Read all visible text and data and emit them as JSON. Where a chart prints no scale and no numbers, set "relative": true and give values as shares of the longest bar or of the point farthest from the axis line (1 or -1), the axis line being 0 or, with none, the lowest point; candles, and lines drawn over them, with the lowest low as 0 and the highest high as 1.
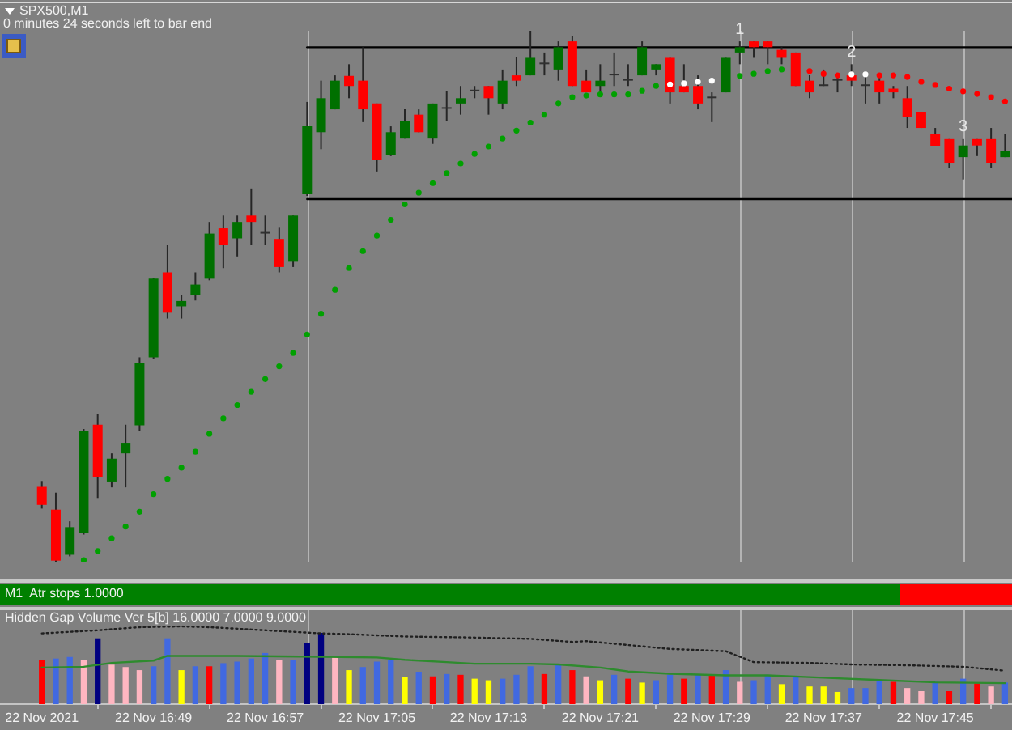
{
  "chart_data": [
    {
      "type": "candlestick",
      "title": "SPX500,M1",
      "subtitle": "0 minutes 24 seconds left to bar end",
      "relative": true,
      "x": [
        "2021-11-22T16:41",
        "2021-11-22T16:42",
        "2021-11-22T16:43",
        "2021-11-22T16:44",
        "2021-11-22T16:45",
        "2021-11-22T16:46",
        "2021-11-22T16:47",
        "2021-11-22T16:48",
        "2021-11-22T16:49",
        "2021-11-22T16:50",
        "2021-11-22T16:51",
        "2021-11-22T16:52",
        "2021-11-22T16:53",
        "2021-11-22T16:54",
        "2021-11-22T16:55",
        "2021-11-22T16:56",
        "2021-11-22T16:57",
        "2021-11-22T16:58",
        "2021-11-22T16:59",
        "2021-11-22T17:00",
        "2021-11-22T17:01",
        "2021-11-22T17:02",
        "2021-11-22T17:03",
        "2021-11-22T17:04",
        "2021-11-22T17:05",
        "2021-11-22T17:06",
        "2021-11-22T17:07",
        "2021-11-22T17:08",
        "2021-11-22T17:09",
        "2021-11-22T17:10",
        "2021-11-22T17:11",
        "2021-11-22T17:12",
        "2021-11-22T17:13",
        "2021-11-22T17:14",
        "2021-11-22T17:15",
        "2021-11-22T17:16",
        "2021-11-22T17:17",
        "2021-11-22T17:18",
        "2021-11-22T17:19",
        "2021-11-22T17:20",
        "2021-11-22T17:21",
        "2021-11-22T17:22",
        "2021-11-22T17:23",
        "2021-11-22T17:24",
        "2021-11-22T17:25",
        "2021-11-22T17:26",
        "2021-11-22T17:27",
        "2021-11-22T17:28",
        "2021-11-22T17:29",
        "2021-11-22T17:30",
        "2021-11-22T17:31",
        "2021-11-22T17:32",
        "2021-11-22T17:33",
        "2021-11-22T17:34",
        "2021-11-22T17:35",
        "2021-11-22T17:36",
        "2021-11-22T17:37",
        "2021-11-22T17:38",
        "2021-11-22T17:39",
        "2021-11-22T17:40",
        "2021-11-22T17:41",
        "2021-11-22T17:42",
        "2021-11-22T17:43",
        "2021-11-22T17:44",
        "2021-11-22T17:45",
        "2021-11-22T17:46",
        "2021-11-22T17:47",
        "2021-11-22T17:48",
        "2021-11-22T17:49",
        "2021-11-22T17:50"
      ],
      "ohlc": [
        [
          0.141,
          0.152,
          0.1,
          0.107
        ],
        [
          0.098,
          0.13,
          0,
          0.002
        ],
        [
          0.013,
          0.076,
          0.01,
          0.065
        ],
        [
          0.054,
          0.25,
          0.051,
          0.247
        ],
        [
          0.258,
          0.278,
          0.12,
          0.16
        ],
        [
          0.151,
          0.204,
          0.14,
          0.194
        ],
        [
          0.204,
          0.258,
          0.14,
          0.224
        ],
        [
          0.257,
          0.385,
          0.246,
          0.375
        ],
        [
          0.385,
          0.535,
          0.382,
          0.533
        ],
        [
          0.545,
          0.596,
          0.458,
          0.469
        ],
        [
          0.481,
          0.502,
          0.458,
          0.491
        ],
        [
          0.502,
          0.545,
          0.492,
          0.522
        ],
        [
          0.533,
          0.64,
          0.53,
          0.618
        ],
        [
          0.628,
          0.652,
          0.553,
          0.596
        ],
        [
          0.609,
          0.652,
          0.575,
          0.64
        ],
        [
          0.652,
          0.703,
          0.596,
          0.64
        ],
        [
          0.618,
          0.652,
          0.596,
          0.618
        ],
        [
          0.608,
          0.629,
          0.545,
          0.555
        ],
        [
          0.565,
          0.652,
          0.555,
          0.652
        ],
        [
          0.692,
          0.866,
          0.689,
          0.82
        ],
        [
          0.809,
          0.906,
          0.777,
          0.873
        ],
        [
          0.852,
          0.916,
          0.852,
          0.906
        ],
        [
          0.915,
          0.937,
          0.873,
          0.896
        ],
        [
          0.906,
          0.969,
          0.828,
          0.852
        ],
        [
          0.863,
          0.863,
          0.735,
          0.756
        ],
        [
          0.766,
          0.82,
          0.764,
          0.809
        ],
        [
          0.797,
          0.852,
          0.797,
          0.83
        ],
        [
          0.842,
          0.852,
          0.809,
          0.809
        ],
        [
          0.797,
          0.863,
          0.787,
          0.863
        ],
        [
          0.853,
          0.886,
          0.83,
          0.853
        ],
        [
          0.863,
          0.896,
          0.842,
          0.873
        ],
        [
          0.886,
          0.896,
          0.873,
          0.886
        ],
        [
          0.896,
          0.896,
          0.842,
          0.873
        ],
        [
          0.863,
          0.927,
          0.852,
          0.906
        ],
        [
          0.916,
          0.95,
          0.896,
          0.906
        ],
        [
          0.916,
          1,
          0.916,
          0.949
        ],
        [
          0.937,
          0.959,
          0.916,
          0.937
        ],
        [
          0.927,
          0.98,
          0.906,
          0.969
        ],
        [
          0.98,
          0.99,
          0.896,
          0.896
        ],
        [
          0.906,
          0.927,
          0.884,
          0.884
        ],
        [
          0.896,
          0.937,
          0.884,
          0.906
        ],
        [
          0.916,
          0.959,
          0.896,
          0.916
        ],
        [
          0.906,
          0.937,
          0.896,
          0.906
        ],
        [
          0.916,
          0.98,
          0.916,
          0.969
        ],
        [
          0.927,
          0.937,
          0.916,
          0.937
        ],
        [
          0.949,
          0.949,
          0.863,
          0.884
        ],
        [
          0.896,
          0.937,
          0.884,
          0.884
        ],
        [
          0.896,
          0.916,
          0.852,
          0.863
        ],
        [
          0.873,
          0.884,
          0.828,
          0.873
        ],
        [
          0.884,
          0.949,
          0.884,
          0.949
        ],
        [
          0.959,
          0.98,
          0.937,
          0.969
        ],
        [
          0.98,
          0.98,
          0.949,
          0.969
        ],
        [
          0.98,
          0.98,
          0.937,
          0.969
        ],
        [
          0.964,
          0.969,
          0.937,
          0.949
        ],
        [
          0.959,
          0.959,
          0.896,
          0.896
        ],
        [
          0.906,
          0.916,
          0.873,
          0.884
        ],
        [
          0.896,
          0.927,
          0.896,
          0.896
        ],
        [
          0.906,
          0.916,
          0.884,
          0.906
        ],
        [
          0.916,
          0.937,
          0.896,
          0.906
        ],
        [
          0.896,
          0.916,
          0.863,
          0.896
        ],
        [
          0.906,
          0.916,
          0.863,
          0.884
        ],
        [
          0.891,
          0.896,
          0.873,
          0.884
        ],
        [
          0.873,
          0.896,
          0.817,
          0.837
        ],
        [
          0.847,
          0.847,
          0.817,
          0.817
        ],
        [
          0.806,
          0.817,
          0.782,
          0.782
        ],
        [
          0.796,
          0.796,
          0.741,
          0.751
        ],
        [
          0.762,
          0.796,
          0.72,
          0.784
        ],
        [
          0.796,
          0.796,
          0.764,
          0.784
        ],
        [
          0.796,
          0.817,
          0.741,
          0.751
        ],
        [
          0.762,
          0.806,
          0.762,
          0.774
        ]
      ],
      "colors": [
        "#ff0000",
        "#ff0000",
        "#007000",
        "#007000",
        "#ff0000",
        "#007000",
        "#007000",
        "#007000",
        "#007000",
        "#ff0000",
        "#007000",
        "#007000",
        "#007000",
        "#ff0000",
        "#007000",
        "#ff0000",
        "#303030",
        "#ff0000",
        "#007000",
        "#007000",
        "#007000",
        "#007000",
        "#ff0000",
        "#ff0000",
        "#ff0000",
        "#007000",
        "#007000",
        "#ff0000",
        "#007000",
        "#303030",
        "#007000",
        "#303030",
        "#ff0000",
        "#007000",
        "#ff0000",
        "#007000",
        "#303030",
        "#007000",
        "#ff0000",
        "#ff0000",
        "#007000",
        "#303030",
        "#303030",
        "#007000",
        "#007000",
        "#ff0000",
        "#ff0000",
        "#ff0000",
        "#303030",
        "#007000",
        "#007000",
        "#ff0000",
        "#ff0000",
        "#ff0000",
        "#ff0000",
        "#ff0000",
        "#303030",
        "#303030",
        "#ff0000",
        "#303030",
        "#ff0000",
        "#ff0000",
        "#ff0000",
        "#ff0000",
        "#ff0000",
        "#ff0000",
        "#007000",
        "#ff0000",
        "#ff0000",
        "#007000"
      ],
      "series": [
        {
          "type": "scatter",
          "color": "#00a000",
          "marker": "circle",
          "x": [
            "2021-11-22T16:44",
            "2021-11-22T16:45",
            "2021-11-22T16:46",
            "2021-11-22T16:47",
            "2021-11-22T16:48",
            "2021-11-22T16:49",
            "2021-11-22T16:50",
            "2021-11-22T16:51",
            "2021-11-22T16:52",
            "2021-11-22T16:53",
            "2021-11-22T16:54",
            "2021-11-22T16:55",
            "2021-11-22T16:56",
            "2021-11-22T16:57",
            "2021-11-22T16:58",
            "2021-11-22T16:59",
            "2021-11-22T17:00",
            "2021-11-22T17:01",
            "2021-11-22T17:02",
            "2021-11-22T17:03",
            "2021-11-22T17:04",
            "2021-11-22T17:05",
            "2021-11-22T17:06",
            "2021-11-22T17:07",
            "2021-11-22T17:08",
            "2021-11-22T17:09",
            "2021-11-22T17:10",
            "2021-11-22T17:11",
            "2021-11-22T17:12",
            "2021-11-22T17:13",
            "2021-11-22T17:14",
            "2021-11-22T17:15",
            "2021-11-22T17:16",
            "2021-11-22T17:17",
            "2021-11-22T17:18",
            "2021-11-22T17:19",
            "2021-11-22T17:20",
            "2021-11-22T17:21",
            "2021-11-22T17:22",
            "2021-11-22T17:23",
            "2021-11-22T17:24",
            "2021-11-22T17:25",
            "2021-11-22T17:31",
            "2021-11-22T17:32",
            "2021-11-22T17:33",
            "2021-11-22T17:34"
          ],
          "values": [
            0.003,
            0.02,
            0.044,
            0.066,
            0.094,
            0.127,
            0.156,
            0.177,
            0.207,
            0.241,
            0.27,
            0.295,
            0.32,
            0.344,
            0.368,
            0.393,
            0.428,
            0.467,
            0.512,
            0.553,
            0.585,
            0.614,
            0.644,
            0.673,
            0.695,
            0.713,
            0.732,
            0.75,
            0.768,
            0.782,
            0.797,
            0.812,
            0.827,
            0.842,
            0.863,
            0.875,
            0.878,
            0.88,
            0.88,
            0.88,
            0.887,
            0.896,
            0.915,
            0.919,
            0.924,
            0.927
          ]
        },
        {
          "type": "scatter",
          "color": "#ffffff",
          "marker": "circle",
          "x": [
            "2021-11-22T17:26",
            "2021-11-22T17:27",
            "2021-11-22T17:28",
            "2021-11-22T17:29",
            "2021-11-22T17:39",
            "2021-11-22T17:40"
          ],
          "values": [
            0.899,
            0.901,
            0.904,
            0.906,
            0.918,
            0.918
          ]
        },
        {
          "type": "scatter",
          "color": "#ff0000",
          "marker": "circle",
          "x": [
            "2021-11-22T17:36",
            "2021-11-22T17:37",
            "2021-11-22T17:38",
            "2021-11-22T17:41",
            "2021-11-22T17:42",
            "2021-11-22T17:43",
            "2021-11-22T17:44",
            "2021-11-22T17:45",
            "2021-11-22T17:46",
            "2021-11-22T17:47",
            "2021-11-22T17:48",
            "2021-11-22T17:49",
            "2021-11-22T17:50"
          ],
          "values": [
            0.924,
            0.919,
            0.916,
            0.916,
            0.916,
            0.913,
            0.904,
            0.898,
            0.891,
            0.886,
            0.881,
            0.875,
            0.867
          ]
        },
        {
          "type": "line",
          "color": "#000000",
          "x": [
            "2021-11-22T17:00",
            "2021-11-22T17:50:30"
          ],
          "values": [
            0.969,
            0.969
          ]
        },
        {
          "type": "line",
          "color": "#000000",
          "x": [
            "2021-11-22T17:00",
            "2021-11-22T17:50:30"
          ],
          "values": [
            0.683,
            0.683
          ]
        }
      ],
      "xlim": [
        "2021-11-22T16:38",
        "2021-11-22T17:50:30"
      ],
      "tick_labels": false,
      "ref_lines": [
        {
          "axis": "x",
          "value": "2021-11-22T17:00",
          "color": "#b4b4b4"
        },
        {
          "axis": "x",
          "value": "2021-11-22T17:31",
          "color": "#b4b4b4"
        },
        {
          "axis": "x",
          "value": "2021-11-22T17:39",
          "color": "#b4b4b4"
        },
        {
          "axis": "x",
          "value": "2021-11-22T17:47",
          "color": "#b4b4b4"
        }
      ],
      "annotations": [
        {
          "text": "1",
          "x": "2021-11-22T17:31",
          "y": 0.98
        },
        {
          "text": "2",
          "x": "2021-11-22T17:39",
          "y": 0.937
        },
        {
          "text": "3",
          "x": "2021-11-22T17:47",
          "y": 0.796
        }
      ]
    },
    {
      "type": "other",
      "title": "M1  Atr stops 1.0000"
    },
    {
      "type": "bar",
      "title": "Hidden Gap Volume Ver 5[b] 16.0000 7.0000 9.0000",
      "relative": true,
      "x": [
        "2021-11-22T16:41",
        "2021-11-22T16:42",
        "2021-11-22T16:43",
        "2021-11-22T16:44",
        "2021-11-22T16:45",
        "2021-11-22T16:46",
        "2021-11-22T16:47",
        "2021-11-22T16:48",
        "2021-11-22T16:49",
        "2021-11-22T16:50",
        "2021-11-22T16:51",
        "2021-11-22T16:52",
        "2021-11-22T16:53",
        "2021-11-22T16:54",
        "2021-11-22T16:55",
        "2021-11-22T16:56",
        "2021-11-22T16:57",
        "2021-11-22T16:58",
        "2021-11-22T16:59",
        "2021-11-22T17:00",
        "2021-11-22T17:01",
        "2021-11-22T17:02",
        "2021-11-22T17:03",
        "2021-11-22T17:04",
        "2021-11-22T17:05",
        "2021-11-22T17:06",
        "2021-11-22T17:07",
        "2021-11-22T17:08",
        "2021-11-22T17:09",
        "2021-11-22T17:10",
        "2021-11-22T17:11",
        "2021-11-22T17:12",
        "2021-11-22T17:13",
        "2021-11-22T17:14",
        "2021-11-22T17:15",
        "2021-11-22T17:16",
        "2021-11-22T17:17",
        "2021-11-22T17:18",
        "2021-11-22T17:19",
        "2021-11-22T17:20",
        "2021-11-22T17:21",
        "2021-11-22T17:22",
        "2021-11-22T17:23",
        "2021-11-22T17:24",
        "2021-11-22T17:25",
        "2021-11-22T17:26",
        "2021-11-22T17:27",
        "2021-11-22T17:28",
        "2021-11-22T17:29",
        "2021-11-22T17:30",
        "2021-11-22T17:31",
        "2021-11-22T17:32",
        "2021-11-22T17:33",
        "2021-11-22T17:34",
        "2021-11-22T17:35",
        "2021-11-22T17:36",
        "2021-11-22T17:37",
        "2021-11-22T17:38",
        "2021-11-22T17:39",
        "2021-11-22T17:40",
        "2021-11-22T17:41",
        "2021-11-22T17:42",
        "2021-11-22T17:43",
        "2021-11-22T17:44",
        "2021-11-22T17:45",
        "2021-11-22T17:46",
        "2021-11-22T17:47",
        "2021-11-22T17:48",
        "2021-11-22T17:49",
        "2021-11-22T17:50"
      ],
      "series": [
        {
          "type": "bar",
          "values": [
            0.56,
            0.58,
            0.6,
            0.56,
            0.84,
            0.5,
            0.47,
            0.43,
            0.48,
            0.84,
            0.43,
            0.48,
            0.48,
            0.52,
            0.54,
            0.58,
            0.65,
            0.56,
            0.56,
            0.78,
            0.91,
            0.6,
            0.43,
            0.47,
            0.54,
            0.56,
            0.34,
            0.41,
            0.35,
            0.38,
            0.37,
            0.32,
            0.3,
            0.32,
            0.37,
            0.48,
            0.38,
            0.5,
            0.43,
            0.35,
            0.3,
            0.37,
            0.32,
            0.27,
            0.3,
            0.37,
            0.32,
            0.37,
            0.37,
            0.43,
            0.28,
            0.3,
            0.37,
            0.25,
            0.34,
            0.22,
            0.22,
            0.15,
            0.2,
            0.2,
            0.29,
            0.28,
            0.2,
            0.16,
            0.28,
            0.16,
            0.32,
            0.26,
            0.22,
            0.27
          ],
          "colors": [
            "#ff0000",
            "#4169e1",
            "#4169e1",
            "#ffb6c1",
            "#000080",
            "#ffb6c1",
            "#ffb6c1",
            "#ffb6c1",
            "#4169e1",
            "#4169e1",
            "#ffff00",
            "#4169e1",
            "#ff0000",
            "#4169e1",
            "#4169e1",
            "#4169e1",
            "#4169e1",
            "#ffb6c1",
            "#4169e1",
            "#000080",
            "#000080",
            "#ffb6c1",
            "#ffff00",
            "#4169e1",
            "#4169e1",
            "#4169e1",
            "#ffff00",
            "#4169e1",
            "#ff0000",
            "#4169e1",
            "#ff0000",
            "#ffff00",
            "#ffff00",
            "#4169e1",
            "#4169e1",
            "#4169e1",
            "#ff0000",
            "#4169e1",
            "#ff0000",
            "#ffb6c1",
            "#ffff00",
            "#4169e1",
            "#ff0000",
            "#ffff00",
            "#4169e1",
            "#4169e1",
            "#ff0000",
            "#4169e1",
            "#ff0000",
            "#4169e1",
            "#ffb6c1",
            "#4169e1",
            "#4169e1",
            "#ffff00",
            "#4169e1",
            "#ffff00",
            "#ffff00",
            "#ffff00",
            "#4169e1",
            "#4169e1",
            "#4169e1",
            "#ff0000",
            "#ffb6c1",
            "#ffb6c1",
            "#4169e1",
            "#ff0000",
            "#4169e1",
            "#ff0000",
            "#ffb6c1",
            "#4169e1"
          ]
        },
        {
          "type": "line",
          "color": "#2e8b2e",
          "x": [
            "2021-11-22T16:41",
            "2021-11-22T16:44",
            "2021-11-22T16:46",
            "2021-11-22T16:49",
            "2021-11-22T16:50",
            "2021-11-22T16:55",
            "2021-11-22T17:01",
            "2021-11-22T17:05",
            "2021-11-22T17:07",
            "2021-11-22T17:10",
            "2021-11-22T17:12",
            "2021-11-22T17:16",
            "2021-11-22T17:18",
            "2021-11-22T17:21",
            "2021-11-22T17:23",
            "2021-11-22T17:26",
            "2021-11-22T17:30",
            "2021-11-22T17:33",
            "2021-11-22T17:37",
            "2021-11-22T17:41",
            "2021-11-22T17:45",
            "2021-11-22T17:50"
          ],
          "values": [
            0.47,
            0.48,
            0.53,
            0.56,
            0.62,
            0.62,
            0.61,
            0.6,
            0.57,
            0.54,
            0.52,
            0.52,
            0.51,
            0.47,
            0.42,
            0.39,
            0.37,
            0.37,
            0.34,
            0.31,
            0.28,
            0.27
          ]
        },
        {
          "type": "line",
          "color": "#202020",
          "line_style": "dotted",
          "x": [
            "2021-11-22T16:41",
            "2021-11-22T16:43",
            "2021-11-22T16:45",
            "2021-11-22T16:48",
            "2021-11-22T16:51",
            "2021-11-22T16:53",
            "2021-11-22T16:56",
            "2021-11-22T16:58",
            "2021-11-22T17:01",
            "2021-11-22T17:03",
            "2021-11-22T17:07",
            "2021-11-22T17:11",
            "2021-11-22T17:16",
            "2021-11-22T17:19",
            "2021-11-22T17:20",
            "2021-11-22T17:23",
            "2021-11-22T17:26",
            "2021-11-22T17:30",
            "2021-11-22T17:32",
            "2021-11-22T17:36",
            "2021-11-22T17:39",
            "2021-11-22T17:43",
            "2021-11-22T17:47",
            "2021-11-22T17:50"
          ],
          "values": [
            0.91,
            0.93,
            0.95,
            0.99,
            1,
            0.99,
            0.96,
            0.94,
            0.91,
            0.9,
            0.87,
            0.86,
            0.84,
            0.8,
            0.81,
            0.76,
            0.71,
            0.68,
            0.54,
            0.53,
            0.51,
            0.5,
            0.48,
            0.43
          ]
        }
      ],
      "xlim": [
        "2021-11-22T16:38",
        "2021-11-22T17:50:30"
      ],
      "xticks": [
        {
          "value": "2021-11-22T16:41",
          "label": "22 Nov 2021"
        },
        {
          "value": "2021-11-22T16:49",
          "label": "22 Nov 16:49"
        },
        {
          "value": "2021-11-22T16:57",
          "label": "22 Nov 16:57"
        },
        {
          "value": "2021-11-22T17:05",
          "label": "22 Nov 17:05"
        },
        {
          "value": "2021-11-22T17:13",
          "label": "22 Nov 17:13"
        },
        {
          "value": "2021-11-22T17:21",
          "label": "22 Nov 17:21"
        },
        {
          "value": "2021-11-22T17:29",
          "label": "22 Nov 17:29"
        },
        {
          "value": "2021-11-22T17:37",
          "label": "22 Nov 17:37"
        },
        {
          "value": "2021-11-22T17:45",
          "label": "22 Nov 17:45"
        }
      ],
      "ref_lines": [
        {
          "axis": "x",
          "value": "2021-11-22T17:00",
          "color": "#b4b4b4"
        },
        {
          "axis": "x",
          "value": "2021-11-22T17:31",
          "color": "#b4b4b4"
        },
        {
          "axis": "x",
          "value": "2021-11-22T17:39",
          "color": "#b4b4b4"
        },
        {
          "axis": "x",
          "value": "2021-11-22T17:47",
          "color": "#b4b4b4"
        }
      ]
    }
  ]
}
